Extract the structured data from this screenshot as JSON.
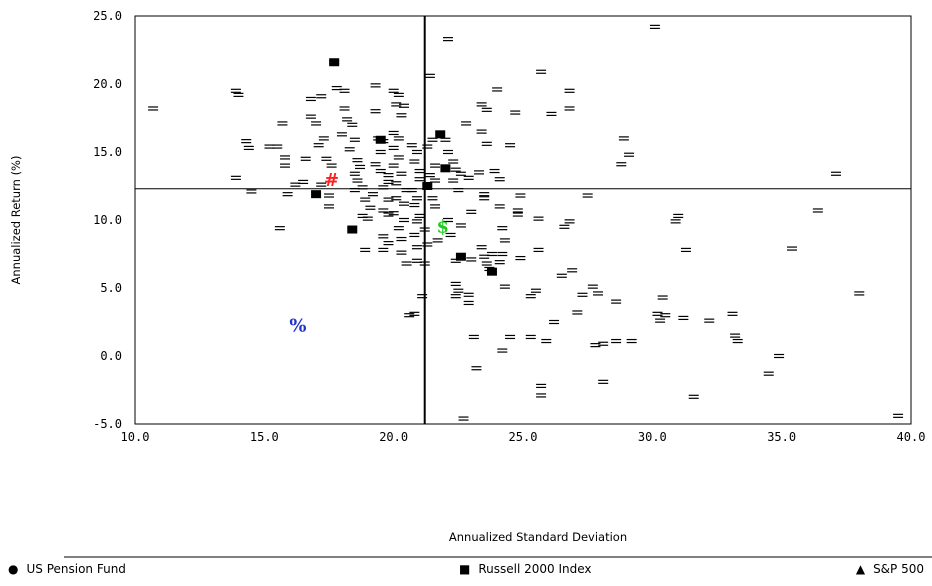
{
  "chart_data": {
    "type": "scatter",
    "title": "",
    "xlabel": "Annualized Standard Deviation",
    "ylabel": "Annualized Return (%)",
    "xlim": [
      10,
      40
    ],
    "ylim": [
      -5,
      25
    ],
    "x_ticks": [
      "10.0",
      "15.0",
      "20.0",
      "25.0",
      "30.0",
      "35.0",
      "40.0"
    ],
    "y_ticks": [
      "25.0",
      "20.0",
      "15.0",
      "10.0",
      "5.0",
      "0.0",
      "-5.0"
    ],
    "grid": false,
    "reference_lines": {
      "x": 21.2,
      "y": 12.3
    },
    "marker_glyph": "=",
    "points": [
      [
        10.7,
        18.2
      ],
      [
        13.9,
        19.5
      ],
      [
        14.0,
        19.2
      ],
      [
        14.3,
        15.8
      ],
      [
        14.4,
        15.3
      ],
      [
        13.9,
        13.1
      ],
      [
        14.5,
        12.1
      ],
      [
        15.2,
        15.4
      ],
      [
        15.5,
        15.4
      ],
      [
        15.7,
        17.1
      ],
      [
        15.8,
        14.6
      ],
      [
        15.8,
        14.0
      ],
      [
        15.9,
        11.9
      ],
      [
        15.6,
        9.4
      ],
      [
        16.2,
        12.6
      ],
      [
        16.6,
        14.5
      ],
      [
        16.5,
        12.8
      ],
      [
        16.8,
        17.6
      ],
      [
        16.8,
        18.9
      ],
      [
        17.2,
        19.1
      ],
      [
        17.0,
        17.1
      ],
      [
        17.3,
        16.0
      ],
      [
        17.1,
        15.5
      ],
      [
        17.4,
        14.5
      ],
      [
        17.6,
        14.0
      ],
      [
        17.2,
        12.6
      ],
      [
        17.5,
        11.8
      ],
      [
        17.5,
        11.0
      ],
      [
        17.7,
        21.6
      ],
      [
        17.8,
        19.7
      ],
      [
        18.1,
        19.5
      ],
      [
        18.1,
        18.2
      ],
      [
        18.2,
        17.4
      ],
      [
        18.4,
        17.0
      ],
      [
        18.0,
        16.3
      ],
      [
        18.5,
        15.9
      ],
      [
        18.3,
        15.2
      ],
      [
        18.6,
        14.4
      ],
      [
        18.7,
        13.9
      ],
      [
        18.5,
        13.4
      ],
      [
        18.6,
        12.9
      ],
      [
        18.8,
        12.4
      ],
      [
        18.5,
        12.2
      ],
      [
        18.9,
        11.5
      ],
      [
        18.8,
        10.3
      ],
      [
        19.2,
        11.9
      ],
      [
        19.1,
        10.9
      ],
      [
        19.0,
        10.1
      ],
      [
        18.9,
        7.8
      ],
      [
        19.3,
        19.9
      ],
      [
        19.3,
        18.0
      ],
      [
        19.4,
        16.0
      ],
      [
        19.6,
        15.8
      ],
      [
        19.5,
        15.0
      ],
      [
        19.3,
        14.1
      ],
      [
        19.5,
        13.6
      ],
      [
        19.8,
        13.3
      ],
      [
        19.8,
        12.8
      ],
      [
        19.6,
        12.4
      ],
      [
        19.8,
        11.5
      ],
      [
        19.6,
        10.7
      ],
      [
        19.8,
        10.4
      ],
      [
        19.6,
        8.8
      ],
      [
        19.8,
        8.3
      ],
      [
        19.6,
        7.8
      ],
      [
        20.0,
        19.5
      ],
      [
        20.2,
        19.2
      ],
      [
        20.1,
        18.5
      ],
      [
        20.4,
        18.4
      ],
      [
        20.3,
        17.7
      ],
      [
        20.0,
        16.4
      ],
      [
        20.2,
        16.0
      ],
      [
        20.0,
        15.3
      ],
      [
        20.2,
        14.6
      ],
      [
        20.0,
        14.0
      ],
      [
        20.3,
        13.4
      ],
      [
        20.1,
        12.7
      ],
      [
        20.5,
        12.2
      ],
      [
        20.1,
        11.6
      ],
      [
        20.4,
        11.2
      ],
      [
        20.0,
        10.5
      ],
      [
        20.4,
        10.0
      ],
      [
        20.2,
        9.4
      ],
      [
        20.3,
        8.6
      ],
      [
        20.3,
        7.6
      ],
      [
        20.5,
        6.8
      ],
      [
        20.6,
        3.0
      ],
      [
        20.8,
        3.1
      ],
      [
        20.7,
        15.5
      ],
      [
        20.9,
        15.0
      ],
      [
        20.8,
        14.3
      ],
      [
        21.0,
        13.6
      ],
      [
        21.0,
        13.0
      ],
      [
        20.7,
        12.2
      ],
      [
        20.9,
        11.6
      ],
      [
        20.8,
        11.1
      ],
      [
        21.0,
        10.3
      ],
      [
        20.9,
        9.9
      ],
      [
        20.8,
        8.9
      ],
      [
        20.9,
        8.0
      ],
      [
        20.9,
        7.0
      ],
      [
        21.1,
        4.4
      ],
      [
        21.2,
        6.8
      ],
      [
        21.4,
        20.6
      ],
      [
        21.5,
        15.9
      ],
      [
        21.3,
        15.4
      ],
      [
        21.6,
        14.0
      ],
      [
        21.4,
        13.3
      ],
      [
        21.6,
        12.9
      ],
      [
        21.5,
        11.6
      ],
      [
        21.6,
        11.0
      ],
      [
        21.2,
        9.3
      ],
      [
        21.3,
        8.2
      ],
      [
        21.7,
        8.5
      ],
      [
        22.1,
        23.3
      ],
      [
        22.0,
        15.9
      ],
      [
        22.1,
        15.0
      ],
      [
        22.3,
        14.3
      ],
      [
        22.4,
        13.7
      ],
      [
        22.6,
        13.4
      ],
      [
        22.3,
        12.9
      ],
      [
        22.5,
        12.2
      ],
      [
        22.1,
        10.0
      ],
      [
        22.2,
        8.9
      ],
      [
        22.6,
        9.6
      ],
      [
        22.4,
        7.0
      ],
      [
        22.4,
        5.3
      ],
      [
        22.5,
        4.8
      ],
      [
        22.4,
        4.4
      ],
      [
        22.7,
        -4.6
      ],
      [
        22.8,
        17.1
      ],
      [
        22.9,
        13.1
      ],
      [
        23.0,
        10.6
      ],
      [
        23.0,
        7.1
      ],
      [
        22.9,
        4.5
      ],
      [
        22.9,
        3.9
      ],
      [
        23.1,
        1.4
      ],
      [
        23.2,
        -0.9
      ],
      [
        23.4,
        18.5
      ],
      [
        23.6,
        18.1
      ],
      [
        23.4,
        16.5
      ],
      [
        23.6,
        15.6
      ],
      [
        23.3,
        13.5
      ],
      [
        23.5,
        11.9
      ],
      [
        23.5,
        11.6
      ],
      [
        23.4,
        8.0
      ],
      [
        23.5,
        7.3
      ],
      [
        23.6,
        6.8
      ],
      [
        23.8,
        7.5
      ],
      [
        23.7,
        6.4
      ],
      [
        23.9,
        13.6
      ],
      [
        24.1,
        13.0
      ],
      [
        24.0,
        19.6
      ],
      [
        24.1,
        11.0
      ],
      [
        24.2,
        9.4
      ],
      [
        24.3,
        8.5
      ],
      [
        24.2,
        7.5
      ],
      [
        24.1,
        6.9
      ],
      [
        24.3,
        5.1
      ],
      [
        24.2,
        0.4
      ],
      [
        24.5,
        1.4
      ],
      [
        24.5,
        15.5
      ],
      [
        24.7,
        17.9
      ],
      [
        24.8,
        10.4
      ],
      [
        24.8,
        10.7
      ],
      [
        24.9,
        11.8
      ],
      [
        24.9,
        7.2
      ],
      [
        25.3,
        4.4
      ],
      [
        25.3,
        1.4
      ],
      [
        25.7,
        20.9
      ],
      [
        25.6,
        10.1
      ],
      [
        25.6,
        7.8
      ],
      [
        25.5,
        4.8
      ],
      [
        25.7,
        -2.2
      ],
      [
        25.7,
        -2.9
      ],
      [
        25.9,
        1.1
      ],
      [
        26.1,
        17.8
      ],
      [
        26.2,
        2.5
      ],
      [
        26.5,
        5.9
      ],
      [
        26.6,
        9.5
      ],
      [
        26.8,
        18.2
      ],
      [
        26.8,
        19.5
      ],
      [
        26.8,
        9.9
      ],
      [
        26.9,
        6.3
      ],
      [
        27.1,
        3.2
      ],
      [
        27.3,
        4.5
      ],
      [
        27.5,
        11.8
      ],
      [
        27.7,
        5.1
      ],
      [
        27.8,
        0.8
      ],
      [
        27.9,
        4.6
      ],
      [
        28.1,
        0.9
      ],
      [
        28.1,
        -1.9
      ],
      [
        28.6,
        4.0
      ],
      [
        28.6,
        1.1
      ],
      [
        28.8,
        14.1
      ],
      [
        28.9,
        16.0
      ],
      [
        29.1,
        14.8
      ],
      [
        29.2,
        1.1
      ],
      [
        30.1,
        24.2
      ],
      [
        30.2,
        3.1
      ],
      [
        30.3,
        2.6
      ],
      [
        30.4,
        4.3
      ],
      [
        30.5,
        3.0
      ],
      [
        30.9,
        9.9
      ],
      [
        31.0,
        10.3
      ],
      [
        31.2,
        2.8
      ],
      [
        31.3,
        7.8
      ],
      [
        31.6,
        -3.0
      ],
      [
        32.2,
        2.6
      ],
      [
        33.1,
        3.1
      ],
      [
        33.2,
        1.5
      ],
      [
        33.3,
        1.1
      ],
      [
        34.5,
        -1.3
      ],
      [
        34.9,
        0.0
      ],
      [
        35.4,
        7.9
      ],
      [
        36.4,
        10.7
      ],
      [
        37.1,
        13.4
      ],
      [
        38.0,
        4.6
      ],
      [
        39.5,
        -4.4
      ]
    ],
    "filled_markers": [
      [
        17.0,
        11.9
      ],
      [
        17.7,
        21.6
      ],
      [
        18.4,
        9.3
      ],
      [
        19.5,
        15.9
      ],
      [
        21.3,
        12.5
      ],
      [
        21.8,
        16.3
      ],
      [
        22.0,
        13.8
      ],
      [
        22.6,
        7.3
      ],
      [
        23.8,
        6.2
      ]
    ],
    "highlights": [
      {
        "symbol": "#",
        "x": 17.6,
        "y": 13.0,
        "color": "#ff2020"
      },
      {
        "symbol": "$",
        "x": 21.9,
        "y": 9.6,
        "color": "#22cc22"
      },
      {
        "symbol": "%",
        "x": 16.3,
        "y": 2.3,
        "color": "#2233cc"
      }
    ],
    "legend": {
      "placement": "bottom",
      "entries": [
        {
          "symbol": "●",
          "name": "US Pension Fund"
        },
        {
          "symbol": "■",
          "name": "Russell 2000 Index"
        },
        {
          "symbol": "▲",
          "name": "S&P 500"
        }
      ]
    }
  }
}
